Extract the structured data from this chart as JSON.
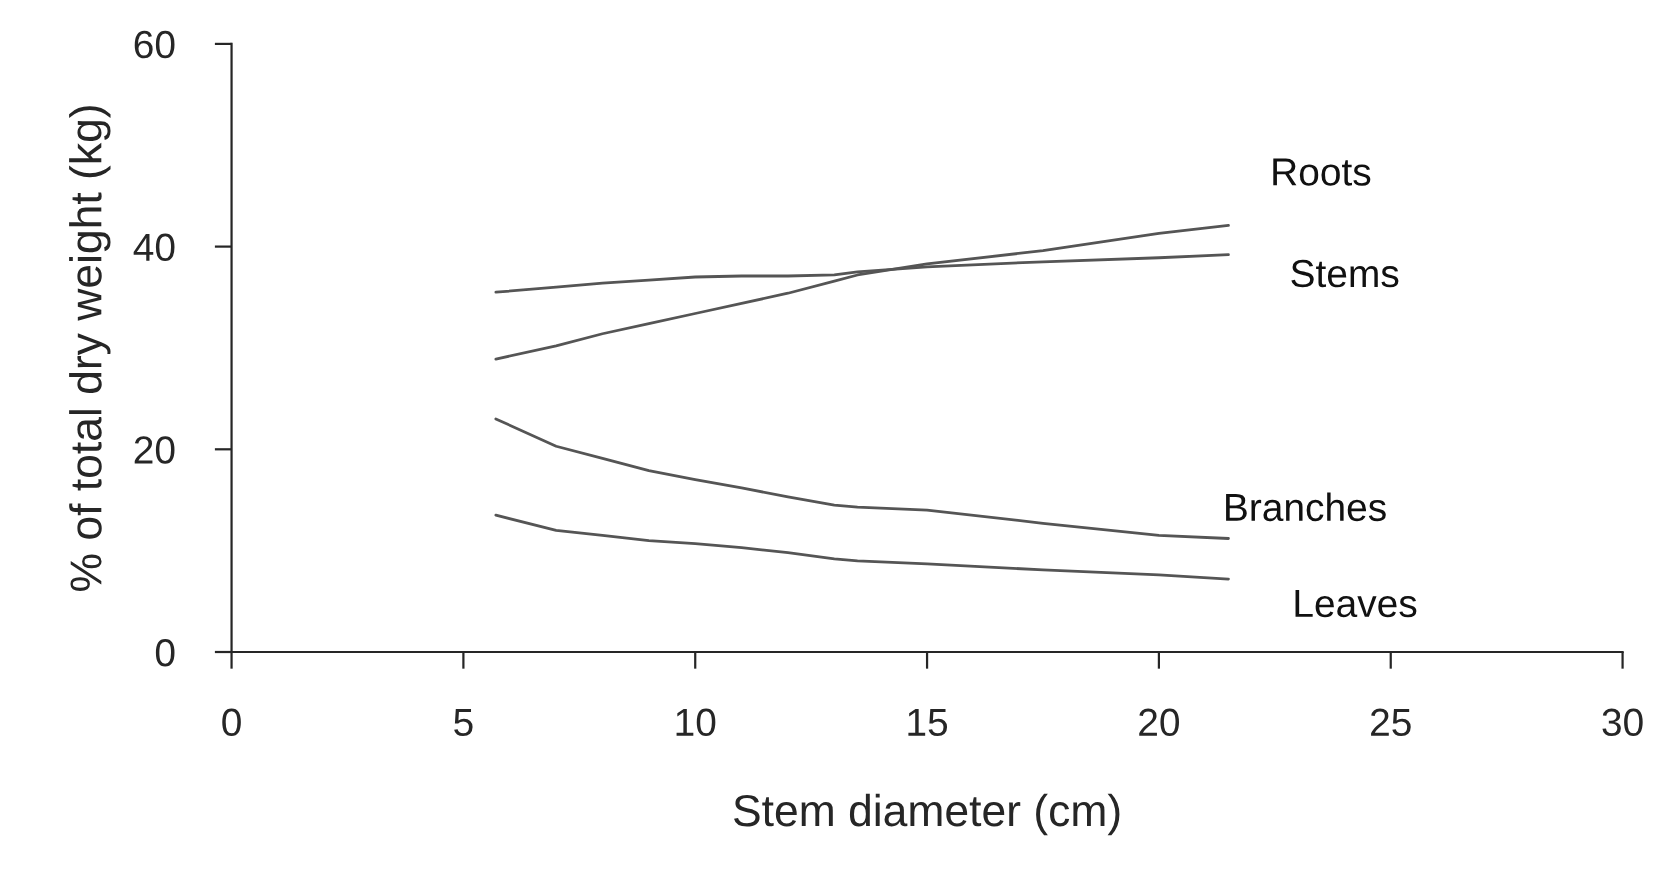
{
  "chart_data": {
    "type": "line",
    "xlabel": "Stem diameter (cm)",
    "ylabel": "% of total dry weight (kg)",
    "xlim": [
      0,
      30
    ],
    "xticks": [
      0,
      5,
      10,
      15,
      20,
      25,
      30
    ],
    "ylim": [
      0,
      60
    ],
    "yticks": [
      0,
      20,
      40,
      60
    ],
    "grid": false,
    "legend": false,
    "marker": "none",
    "line_style": "solid",
    "x": [
      5.7,
      7,
      8,
      9,
      10,
      11,
      12,
      13,
      13.5,
      15,
      17.5,
      20,
      21.5
    ],
    "series": [
      {
        "name": "Roots",
        "color": "#555555",
        "values": [
          28.9,
          30.2,
          31.4,
          32.4,
          33.4,
          34.4,
          35.4,
          36.6,
          37.2,
          38.3,
          39.6,
          41.3,
          42.1
        ]
      },
      {
        "name": "Stems",
        "color": "#555555",
        "values": [
          35.5,
          36.0,
          36.4,
          36.7,
          37.0,
          37.1,
          37.1,
          37.2,
          37.5,
          38.0,
          38.5,
          38.9,
          39.2
        ]
      },
      {
        "name": "Branches",
        "color": "#555555",
        "values": [
          23.0,
          20.3,
          19.1,
          17.9,
          17.0,
          16.2,
          15.3,
          14.5,
          14.3,
          14.0,
          12.7,
          11.5,
          11.2
        ]
      },
      {
        "name": "Leaves",
        "color": "#555555",
        "values": [
          13.5,
          12.0,
          11.5,
          11.0,
          10.7,
          10.3,
          9.8,
          9.2,
          9.0,
          8.7,
          8.1,
          7.6,
          7.2
        ]
      }
    ]
  }
}
